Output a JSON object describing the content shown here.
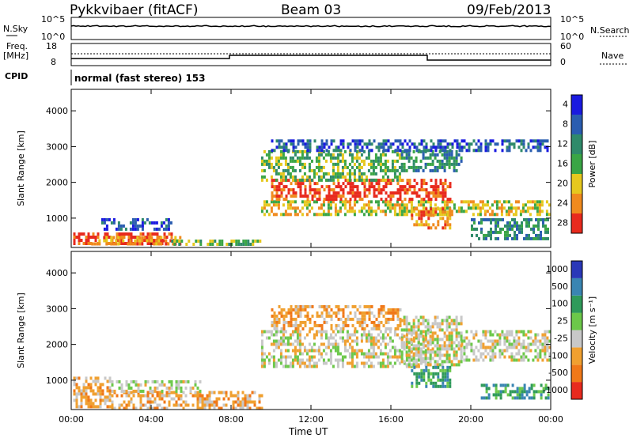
{
  "header": {
    "title": "Pykkvibaer (fitACF)",
    "beam": "Beam 03",
    "date": "09/Feb/2013"
  },
  "strips": {
    "nsky_label": "N.Sky",
    "nsky_ticks": [
      "10^5",
      "10^0"
    ],
    "nsearch_label": "N.Search",
    "nsearch_ticks": [
      "10^5",
      "10^0"
    ],
    "freq_label": "Freq.",
    "freq_unit": "[MHz]",
    "freq_ticks": [
      "18",
      "8"
    ],
    "nave_label": "Nave",
    "nave_ticks": [
      "60",
      "0"
    ],
    "cpid_label": "CPID",
    "cpid_value": "normal (fast stereo) 153"
  },
  "chart_data": [
    {
      "type": "heatmap",
      "name": "power",
      "ylabel": "Slant Range [km]",
      "yticks": [
        "1000",
        "2000",
        "3000",
        "4000"
      ],
      "ylim": [
        180,
        4600
      ],
      "xlim": [
        0,
        24
      ],
      "xticks": [
        "00:00",
        "04:00",
        "08:00",
        "12:00",
        "16:00",
        "20:00",
        "00:00"
      ],
      "colorbar": {
        "label": "Power [dB]",
        "ticks": [
          "4",
          "8",
          "12",
          "16",
          "20",
          "24",
          "28"
        ],
        "colors": [
          "#1a1ae0",
          "#2a5db0",
          "#2f8a6a",
          "#3aa545",
          "#e6c81e",
          "#f08a1e",
          "#e82a1e"
        ]
      },
      "regions": [
        {
          "t0": 0.1,
          "t1": 5.2,
          "r0": 250,
          "r1": 600,
          "level": 6
        },
        {
          "t0": 1.0,
          "t1": 5.5,
          "r0": 300,
          "r1": 500,
          "level": 5
        },
        {
          "t0": 1.5,
          "t1": 5.0,
          "r0": 700,
          "r1": 1000,
          "level": 1
        },
        {
          "t0": 5.0,
          "t1": 9.5,
          "r0": 250,
          "r1": 400,
          "level": 3
        },
        {
          "t0": 9.5,
          "t1": 23.9,
          "r0": 1100,
          "r1": 1500,
          "level": 4
        },
        {
          "t0": 10.0,
          "t1": 19.0,
          "r0": 1500,
          "r1": 2100,
          "level": 6
        },
        {
          "t0": 9.5,
          "t1": 16.5,
          "r0": 2100,
          "r1": 2900,
          "level": 3
        },
        {
          "t0": 16.5,
          "t1": 19.5,
          "r0": 2300,
          "r1": 2900,
          "level": 2
        },
        {
          "t0": 17.0,
          "t1": 19.0,
          "r0": 700,
          "r1": 1300,
          "level": 5
        },
        {
          "t0": 20.0,
          "t1": 23.9,
          "r0": 400,
          "r1": 1000,
          "level": 2
        },
        {
          "t0": 10.0,
          "t1": 23.9,
          "r0": 2900,
          "r1": 3200,
          "level": 1
        }
      ]
    },
    {
      "type": "heatmap",
      "name": "velocity",
      "ylabel": "Slant Range [km]",
      "yticks": [
        "1000",
        "2000",
        "3000",
        "4000"
      ],
      "ylim": [
        180,
        4600
      ],
      "xlim": [
        0,
        24
      ],
      "xticks": [
        "00:00",
        "04:00",
        "08:00",
        "12:00",
        "16:00",
        "20:00",
        "00:00"
      ],
      "xlabel": "Time UT",
      "colorbar": {
        "label": "Velocity [m s⁻¹]",
        "ticks": [
          "1000",
          "500",
          "100",
          "25",
          "-25",
          "-100",
          "-500",
          "-1000"
        ],
        "colors": [
          "#2a38b8",
          "#3a85b2",
          "#2f9a5a",
          "#6cc84a",
          "#c8c8c8",
          "#f0a030",
          "#f07818",
          "#e82a1e"
        ]
      },
      "regions": [
        {
          "t0": 0.1,
          "t1": 2.0,
          "r0": 300,
          "r1": 1100,
          "level": 5
        },
        {
          "t0": 2.0,
          "t1": 9.5,
          "r0": 250,
          "r1": 700,
          "level": 5
        },
        {
          "t0": 2.0,
          "t1": 6.5,
          "r0": 700,
          "r1": 1000,
          "level": 4
        },
        {
          "t0": 9.5,
          "t1": 18.0,
          "r0": 1400,
          "r1": 2400,
          "level": 4
        },
        {
          "t0": 10.0,
          "t1": 16.5,
          "r0": 2400,
          "r1": 3100,
          "level": 5
        },
        {
          "t0": 16.5,
          "t1": 19.5,
          "r0": 1400,
          "r1": 2800,
          "level": 4
        },
        {
          "t0": 17.0,
          "t1": 19.0,
          "r0": 800,
          "r1": 1400,
          "level": 2
        },
        {
          "t0": 19.5,
          "t1": 23.9,
          "r0": 1600,
          "r1": 2400,
          "level": 4
        },
        {
          "t0": 20.5,
          "t1": 23.9,
          "r0": 500,
          "r1": 900,
          "level": 2
        }
      ]
    }
  ]
}
